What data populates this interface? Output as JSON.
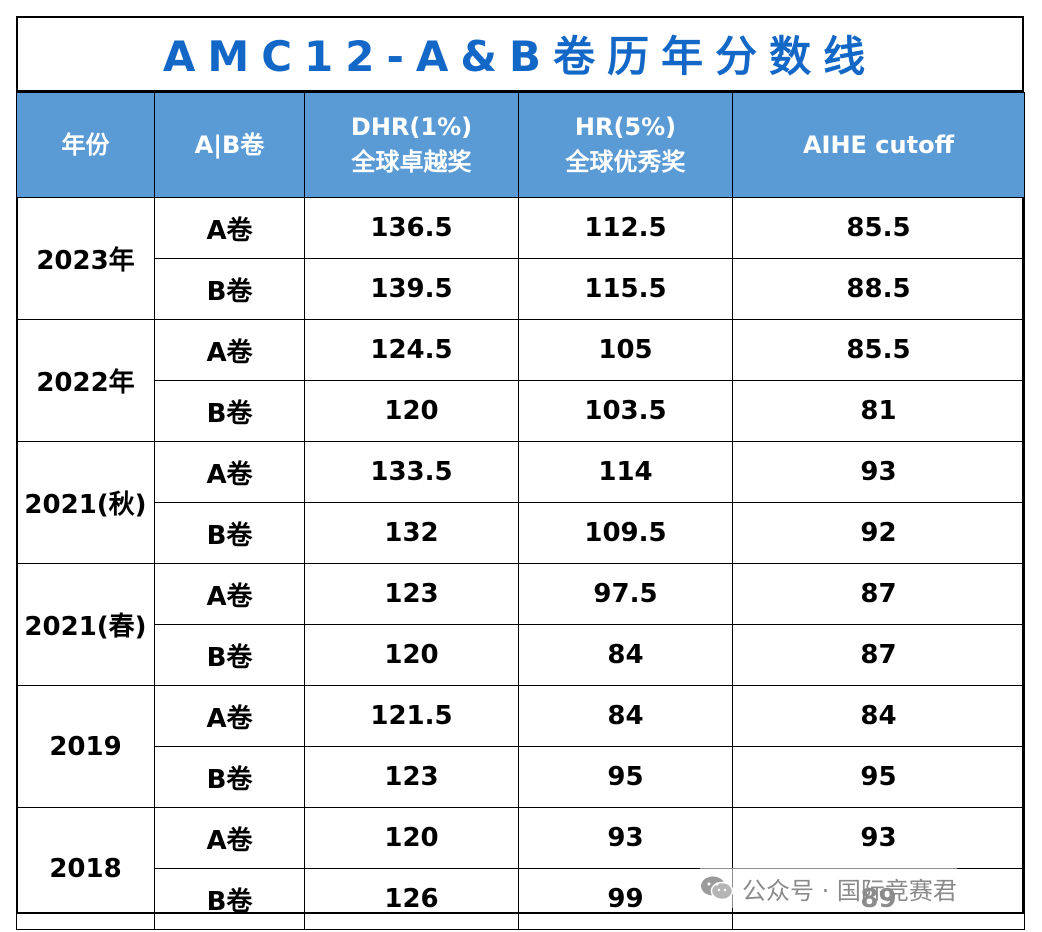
{
  "title": "AMC12-A&B卷历年分数线",
  "headers": {
    "year": "年份",
    "paper": "A|B卷",
    "dhr_line1": "DHR(1%)",
    "dhr_line2": "全球卓越奖",
    "hr_line1": "HR(5%)",
    "hr_line2": "全球优秀奖",
    "aihe": "AIHE cutoff"
  },
  "rows": [
    {
      "year": "2023年",
      "a": {
        "paper": "A卷",
        "dhr": "136.5",
        "hr": "112.5",
        "aihe": "85.5"
      },
      "b": {
        "paper": "B卷",
        "dhr": "139.5",
        "hr": "115.5",
        "aihe": "88.5"
      }
    },
    {
      "year": "2022年",
      "a": {
        "paper": "A卷",
        "dhr": "124.5",
        "hr": "105",
        "aihe": "85.5"
      },
      "b": {
        "paper": "B卷",
        "dhr": "120",
        "hr": "103.5",
        "aihe": "81"
      }
    },
    {
      "year": "2021(秋)",
      "a": {
        "paper": "A卷",
        "dhr": "133.5",
        "hr": "114",
        "aihe": "93"
      },
      "b": {
        "paper": "B卷",
        "dhr": "132",
        "hr": "109.5",
        "aihe": "92"
      }
    },
    {
      "year": "2021(春)",
      "a": {
        "paper": "A卷",
        "dhr": "123",
        "hr": "97.5",
        "aihe": "87"
      },
      "b": {
        "paper": "B卷",
        "dhr": "120",
        "hr": "84",
        "aihe": "87"
      }
    },
    {
      "year": "2019",
      "a": {
        "paper": "A卷",
        "dhr": "121.5",
        "hr": "84",
        "aihe": "84"
      },
      "b": {
        "paper": "B卷",
        "dhr": "123",
        "hr": "95",
        "aihe": "95"
      }
    },
    {
      "year": "2018",
      "a": {
        "paper": "A卷",
        "dhr": "120",
        "hr": "93",
        "aihe": "93"
      },
      "b": {
        "paper": "B卷",
        "dhr": "126",
        "hr": "99",
        "aihe": "89"
      }
    }
  ],
  "watermark": {
    "text": "公众号 · 国际竞赛君",
    "icon": "wechat-icon"
  },
  "colors": {
    "title": "#1367c6",
    "header_bg": "#5b9bd5",
    "header_text": "#ffffff"
  }
}
